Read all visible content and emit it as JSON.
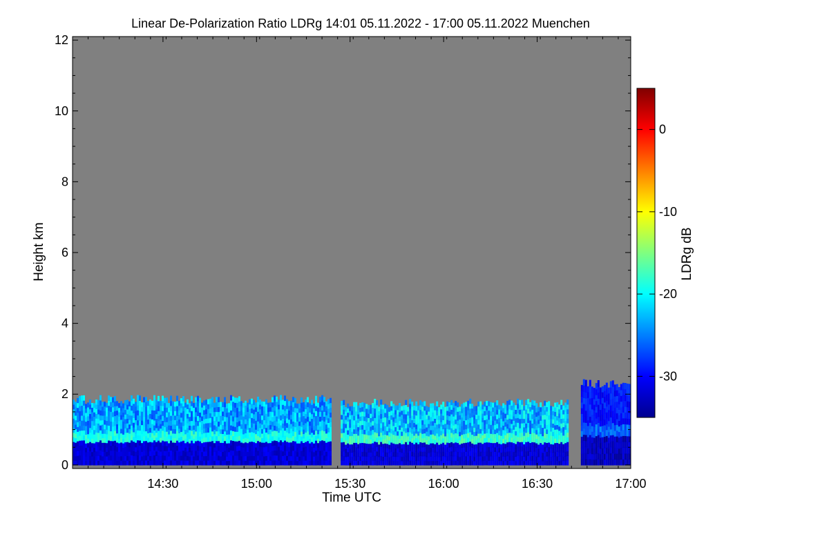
{
  "chart_data": {
    "type": "heatmap",
    "title": "Linear De-Polarization Ratio LDRg   14:01 05.11.2022 - 17:00 05.11.2022 Muenchen",
    "xlabel": "Time UTC",
    "ylabel": "Height km",
    "x_range_minutes_utc": [
      841,
      1020
    ],
    "x_ticks": [
      {
        "label": "14:30",
        "minutes": 870
      },
      {
        "label": "15:00",
        "minutes": 900
      },
      {
        "label": "15:30",
        "minutes": 930
      },
      {
        "label": "16:00",
        "minutes": 960
      },
      {
        "label": "16:30",
        "minutes": 990
      },
      {
        "label": "17:00",
        "minutes": 1020
      }
    ],
    "y_range_km": [
      -0.1,
      12.1
    ],
    "y_ticks": [
      0,
      2,
      4,
      6,
      8,
      10,
      12
    ],
    "colorbar": {
      "label": "LDRg dB",
      "range_db": [
        -35,
        5
      ],
      "ticks": [
        0,
        -10,
        -20,
        -30
      ],
      "colormap": "jet"
    },
    "background_color": "#808080",
    "cloud_layers": [
      {
        "start_min": 841,
        "end_min": 924,
        "base_km": 0.0,
        "top_km": 1.85,
        "ldr_db_low": -33,
        "ldr_db_high": -21
      },
      {
        "start_min": 927,
        "end_min": 1000,
        "base_km": 0.0,
        "top_km": 1.75,
        "ldr_db_low": -33,
        "ldr_db_high": -20
      },
      {
        "start_min": 1004,
        "end_min": 1020,
        "base_km": 0.0,
        "top_km": 2.3,
        "ldr_db_low": -34,
        "ldr_db_high": -28
      }
    ]
  }
}
